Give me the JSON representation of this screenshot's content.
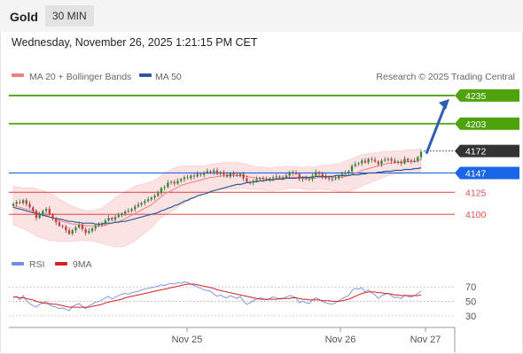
{
  "header": {
    "symbol": "Gold",
    "timeframe": "30 MIN"
  },
  "date_line": "Wednesday, November 26, 2025 1:21:15 PM CET",
  "legend": {
    "ma20_label": "MA 20 + Bollinger Bands",
    "ma50_label": "MA 50",
    "copyright": "Research © 2025 Trading Central",
    "rsi_label": "RSI",
    "rsi_ma_label": "9MA"
  },
  "colors": {
    "ma20": "#f08080",
    "ma50": "#2c5a99",
    "resistance": "#4ea20b",
    "support": "#e35050",
    "pivot": "#1a66e6",
    "last": "#333333",
    "bull": "#2e8b2e",
    "bear": "#d23a3a",
    "rsi": "#6f8fe0",
    "rsi_ma": "#d62020"
  },
  "chart_data": [
    {
      "type": "candlestick",
      "title": "Gold",
      "timeframe": "30 MIN",
      "x_ticks": [
        "Nov 25",
        "Nov 26",
        "Nov 27"
      ],
      "ylim": [
        4060,
        4247
      ],
      "levels": [
        {
          "value": 4235,
          "label": "4235",
          "kind": "resistance"
        },
        {
          "value": 4203,
          "label": "4203",
          "kind": "resistance"
        },
        {
          "value": 4172,
          "label": "4172",
          "kind": "last"
        },
        {
          "value": 4147,
          "label": "4147",
          "kind": "pivot"
        },
        {
          "value": 4125,
          "label": "4125",
          "kind": "support"
        },
        {
          "value": 4100,
          "label": "4100",
          "kind": "support"
        }
      ],
      "close_series": [
        4112,
        4114,
        4113,
        4116,
        4112,
        4108,
        4104,
        4096,
        4100,
        4104,
        4106,
        4100,
        4095,
        4091,
        4087,
        4086,
        4082,
        4078,
        4082,
        4085,
        4088,
        4083,
        4079,
        4081,
        4084,
        4087,
        4088,
        4090,
        4093,
        4096,
        4094,
        4097,
        4099,
        4101,
        4103,
        4104,
        4106,
        4109,
        4111,
        4113,
        4115,
        4117,
        4119,
        4121,
        4124,
        4130,
        4131,
        4136,
        4137,
        4135,
        4138,
        4140,
        4142,
        4141,
        4144,
        4143,
        4146,
        4145,
        4147,
        4149,
        4148,
        4150,
        4146,
        4148,
        4145,
        4143,
        4147,
        4145,
        4144,
        4146,
        4141,
        4137,
        4136,
        4138,
        4140,
        4141,
        4140,
        4139,
        4141,
        4142,
        4143,
        4142,
        4142,
        4144,
        4148,
        4147,
        4146,
        4140,
        4141,
        4140,
        4140,
        4144,
        4148,
        4146,
        4143,
        4141,
        4140,
        4140,
        4141,
        4144,
        4146,
        4147,
        4149,
        4155,
        4157,
        4158,
        4161,
        4159,
        4163,
        4162,
        4160,
        4157,
        4161,
        4162,
        4163,
        4161,
        4159,
        4160,
        4158,
        4163,
        4161,
        4160,
        4161,
        4165,
        4171
      ],
      "ma20_series": [
        4110,
        4109,
        4108,
        4107,
        4106,
        4105,
        4104,
        4102,
        4101,
        4100,
        4099,
        4097,
        4096,
        4095,
        4093,
        4092,
        4091,
        4090,
        4089,
        4089,
        4088,
        4088,
        4087,
        4087,
        4087,
        4087,
        4087,
        4087,
        4088,
        4089,
        4090,
        4091,
        4092,
        4093,
        4095,
        4097,
        4099,
        4101,
        4103,
        4105,
        4107,
        4109,
        4111,
        4114,
        4117,
        4120,
        4123,
        4125,
        4127,
        4129,
        4131,
        4133,
        4134,
        4135,
        4136,
        4137,
        4138,
        4139,
        4140,
        4141,
        4142,
        4142,
        4143,
        4143,
        4144,
        4144,
        4144,
        4144,
        4144,
        4144,
        4144,
        4143,
        4142,
        4142,
        4141,
        4141,
        4141,
        4140,
        4140,
        4140,
        4141,
        4141,
        4141,
        4142,
        4142,
        4142,
        4142,
        4142,
        4141,
        4141,
        4141,
        4141,
        4141,
        4142,
        4142,
        4142,
        4142,
        4142,
        4142,
        4142,
        4142,
        4143,
        4144,
        4145,
        4147,
        4148,
        4150,
        4151,
        4152,
        4153,
        4154,
        4155,
        4156,
        4157,
        4158,
        4158,
        4159,
        4159,
        4159,
        4160,
        4160,
        4160,
        4160,
        4161,
        4162
      ],
      "ma50_series": [
        4108,
        4107,
        4106,
        4105,
        4104,
        4103,
        4102,
        4101,
        4100,
        4099,
        4098,
        4097,
        4096,
        4095,
        4095,
        4094,
        4093,
        4092,
        4092,
        4091,
        4091,
        4090,
        4090,
        4090,
        4090,
        4089,
        4089,
        4089,
        4090,
        4090,
        4090,
        4091,
        4091,
        4092,
        4092,
        4093,
        4094,
        4095,
        4096,
        4097,
        4098,
        4099,
        4100,
        4101,
        4102,
        4104,
        4105,
        4107,
        4108,
        4110,
        4111,
        4113,
        4115,
        4116,
        4118,
        4119,
        4121,
        4122,
        4123,
        4124,
        4126,
        4127,
        4128,
        4129,
        4130,
        4131,
        4132,
        4133,
        4134,
        4134,
        4135,
        4136,
        4136,
        4137,
        4137,
        4138,
        4138,
        4139,
        4139,
        4139,
        4140,
        4140,
        4140,
        4141,
        4141,
        4141,
        4141,
        4142,
        4142,
        4142,
        4142,
        4142,
        4143,
        4143,
        4143,
        4143,
        4143,
        4143,
        4144,
        4144,
        4144,
        4144,
        4144,
        4145,
        4145,
        4145,
        4146,
        4146,
        4147,
        4147,
        4147,
        4148,
        4148,
        4149,
        4149,
        4149,
        4150,
        4150,
        4150,
        4151,
        4151,
        4151,
        4152,
        4152,
        4153
      ],
      "bb_width": [
        22,
        22,
        23,
        23,
        24,
        25,
        26,
        27,
        27,
        27,
        27,
        27,
        26,
        25,
        24,
        23,
        22,
        21,
        20,
        19,
        18,
        17,
        17,
        17,
        17,
        18,
        19,
        20,
        22,
        24,
        26,
        28,
        29,
        30,
        31,
        31,
        31,
        31,
        30,
        29,
        28,
        27,
        26,
        25,
        24,
        24,
        24,
        24,
        24,
        24,
        23,
        22,
        21,
        20,
        19,
        18,
        17,
        16,
        15,
        15,
        15,
        15,
        15,
        15,
        15,
        15,
        15,
        15,
        15,
        14,
        14,
        14,
        14,
        13,
        13,
        13,
        13,
        13,
        13,
        13,
        13,
        13,
        13,
        13,
        12,
        12,
        12,
        12,
        12,
        13,
        13,
        13,
        13,
        13,
        14,
        14,
        14,
        15,
        15,
        16,
        17,
        18,
        18,
        18,
        18,
        18,
        18,
        17,
        17,
        16,
        16,
        15,
        15,
        14,
        14,
        13,
        13,
        13,
        13,
        13,
        13,
        13,
        13,
        13,
        13
      ]
    },
    {
      "type": "line",
      "title": "RSI",
      "y_ticks": [
        70,
        50,
        30
      ],
      "ylim": [
        20,
        85
      ],
      "series": [
        {
          "name": "RSI",
          "values": [
            55,
            57,
            52,
            58,
            51,
            47,
            44,
            42,
            46,
            48,
            50,
            45,
            43,
            42,
            40,
            41,
            39,
            37,
            43,
            45,
            47,
            43,
            40,
            44,
            46,
            49,
            50,
            52,
            55,
            57,
            53,
            56,
            58,
            60,
            61,
            60,
            62,
            63,
            64,
            66,
            67,
            68,
            69,
            70,
            71,
            73,
            72,
            74,
            75,
            74,
            76,
            75,
            77,
            76,
            74,
            72,
            70,
            68,
            66,
            65,
            64,
            60,
            57,
            59,
            56,
            55,
            58,
            56,
            54,
            57,
            50,
            46,
            48,
            51,
            53,
            55,
            54,
            52,
            54,
            56,
            55,
            53,
            54,
            56,
            58,
            57,
            55,
            48,
            50,
            48,
            47,
            52,
            55,
            53,
            50,
            48,
            47,
            46,
            48,
            51,
            54,
            56,
            58,
            65,
            68,
            67,
            69,
            63,
            66,
            62,
            59,
            54,
            58,
            60,
            61,
            58,
            55,
            56,
            54,
            59,
            57,
            56,
            58,
            61,
            64
          ]
        },
        {
          "name": "9MA",
          "values": [
            56,
            56,
            55,
            55,
            54,
            53,
            52,
            50,
            49,
            48,
            47,
            47,
            46,
            46,
            45,
            44,
            43,
            42,
            42,
            42,
            42,
            42,
            42,
            42,
            43,
            44,
            45,
            46,
            48,
            49,
            50,
            51,
            52,
            53,
            55,
            56,
            57,
            58,
            59,
            60,
            61,
            62,
            63,
            64,
            65,
            66,
            67,
            68,
            69,
            70,
            71,
            72,
            73,
            74,
            74,
            74,
            73,
            72,
            71,
            70,
            69,
            68,
            66,
            65,
            64,
            63,
            62,
            61,
            60,
            59,
            58,
            57,
            56,
            55,
            54,
            53,
            53,
            53,
            53,
            53,
            53,
            54,
            54,
            54,
            54,
            55,
            55,
            54,
            53,
            53,
            52,
            52,
            52,
            52,
            51,
            51,
            51,
            50,
            50,
            50,
            51,
            52,
            53,
            55,
            57,
            59,
            61,
            62,
            63,
            63,
            63,
            62,
            62,
            61,
            61,
            60,
            59,
            59,
            58,
            58,
            58,
            58,
            58,
            58,
            59
          ]
        }
      ]
    }
  ]
}
